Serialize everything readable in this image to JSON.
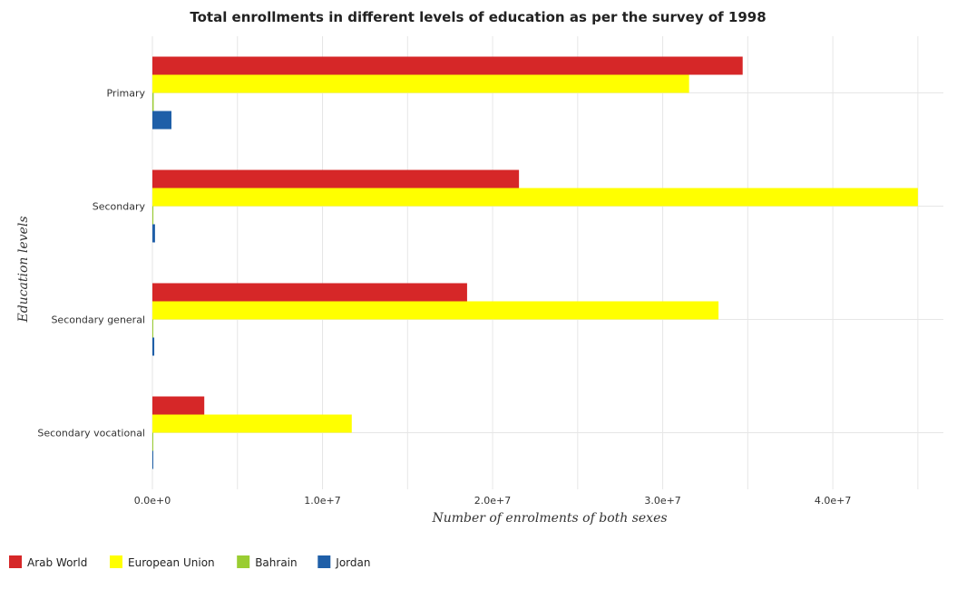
{
  "chart_data": {
    "type": "bar",
    "orientation": "horizontal",
    "title": "Total enrollments in different levels of education as per the survey of 1998",
    "xlabel": "Number of enrolments of both sexes",
    "ylabel": "Education levels",
    "categories": [
      "Primary",
      "Secondary",
      "Secondary general",
      "Secondary vocational"
    ],
    "x_ticks": [
      0,
      10000000,
      20000000,
      30000000,
      40000000
    ],
    "x_tick_labels": [
      "0.0e+0",
      "1.0e+7",
      "2.0e+7",
      "3.0e+7",
      "4.0e+7"
    ],
    "xlim": [
      0,
      46500000
    ],
    "grid": true,
    "legend_position": "bottom-left",
    "series": [
      {
        "name": "Arab World",
        "color": "#d62728",
        "values": [
          34700000,
          21550000,
          18500000,
          3050000
        ]
      },
      {
        "name": "European Union",
        "color": "#ffff00",
        "values": [
          31550000,
          45000000,
          33280000,
          11720000
        ]
      },
      {
        "name": "Bahrain",
        "color": "#9acd32",
        "values": [
          76000,
          58000,
          52000,
          6000
        ]
      },
      {
        "name": "Jordan",
        "color": "#1f5fa8",
        "values": [
          1120000,
          155000,
          110000,
          40000
        ]
      }
    ]
  }
}
